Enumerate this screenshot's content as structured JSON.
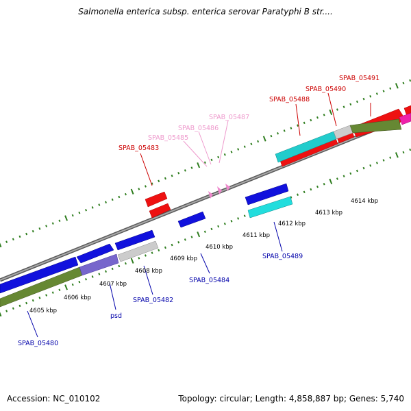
{
  "header": {
    "title": "Salmonella enterica subsp. enterica serovar Paratyphi B str...."
  },
  "footer": {
    "accession": "Accession: NC_010102",
    "summary": "Topology: circular; Length: 4,858,887 bp; Genes: 5,740"
  },
  "colors": {
    "backbone": "#8a8a8a",
    "tick": "#2e7d1e",
    "label_red": "#cc0000",
    "label_pink": "#ee99cc",
    "label_blue": "#0000aa"
  },
  "scale_labels": [
    "4605 kbp",
    "4606 kbp",
    "4607 kbp",
    "4608 kbp",
    "4609 kbp",
    "4610 kbp",
    "4611 kbp",
    "4612 kbp",
    "4613 kbp",
    "4614 kbp"
  ],
  "gene_labels": [
    {
      "text": "SPAB_05491",
      "color": "red"
    },
    {
      "text": "SPAB_05490",
      "color": "red"
    },
    {
      "text": "SPAB_05488",
      "color": "red"
    },
    {
      "text": "SPAB_05487",
      "color": "pink"
    },
    {
      "text": "SPAB_05486",
      "color": "pink"
    },
    {
      "text": "SPAB_05485",
      "color": "pink"
    },
    {
      "text": "SPAB_05483",
      "color": "red"
    },
    {
      "text": "SPAB_05489",
      "color": "blue"
    },
    {
      "text": "SPAB_05484",
      "color": "blue"
    },
    {
      "text": "SPAB_05482",
      "color": "blue"
    },
    {
      "text": "psd",
      "color": "blue"
    },
    {
      "text": "SPAB_05480",
      "color": "blue"
    }
  ]
}
